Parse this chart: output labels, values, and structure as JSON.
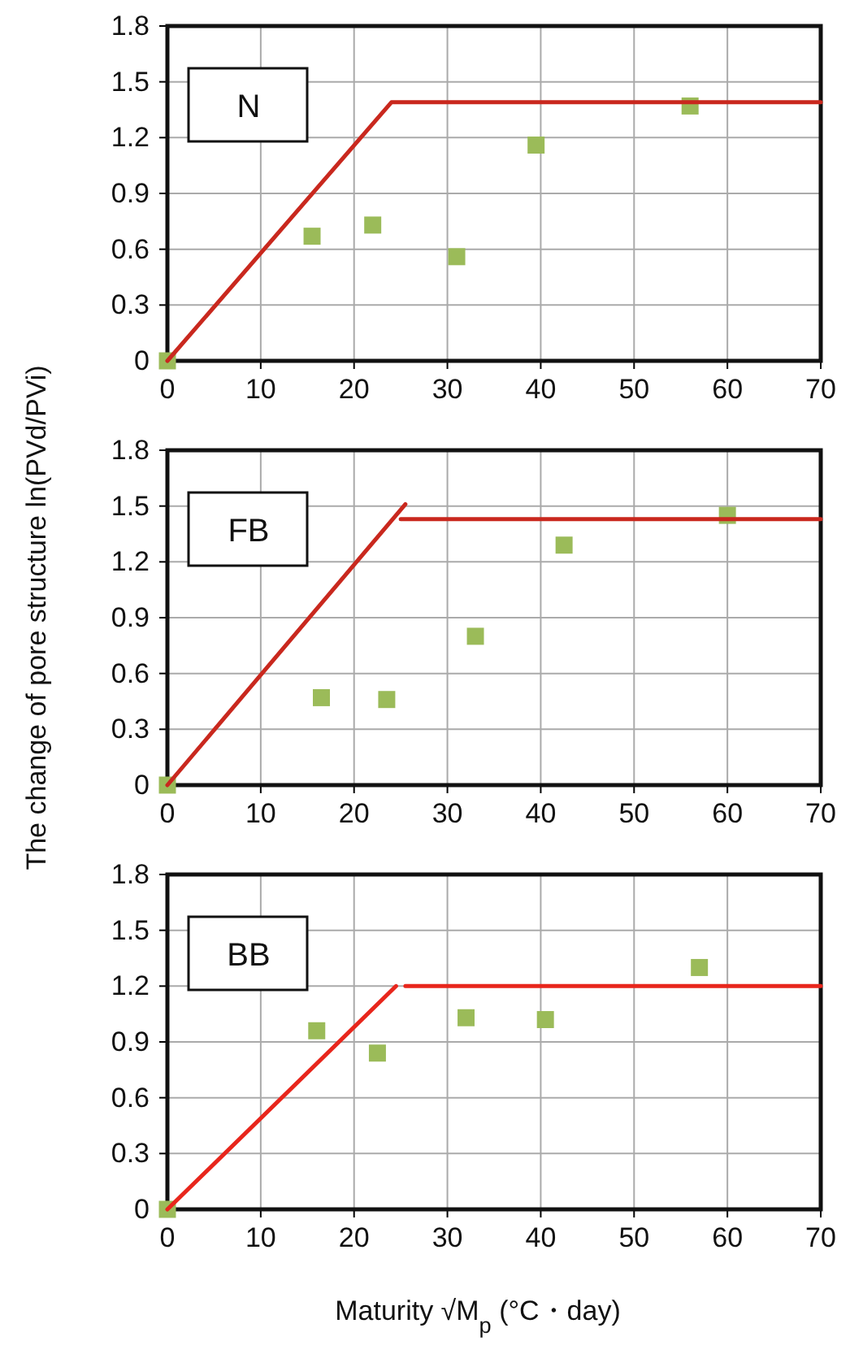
{
  "chart_data": [
    {
      "type": "scatter",
      "annotations": [
        "N"
      ],
      "xlim": [
        0,
        70
      ],
      "xticks": [
        0,
        10,
        20,
        30,
        40,
        50,
        60,
        70
      ],
      "ylim": [
        0,
        1.8
      ],
      "yticks": [
        0,
        0.3,
        0.6,
        0.9,
        1.2,
        1.5,
        1.8
      ],
      "grid": true,
      "series": [
        {
          "type": "scatter",
          "marker": "square",
          "color": "#9bbb59",
          "x": [
            0,
            15.5,
            22,
            31,
            39.5,
            56
          ],
          "values": [
            0,
            0.67,
            0.73,
            0.56,
            1.16,
            1.37
          ]
        },
        {
          "type": "line",
          "marker": "none",
          "color": "#c9281e",
          "x": [
            0,
            24,
            70
          ],
          "values": [
            0,
            1.39,
            1.39
          ]
        }
      ]
    },
    {
      "type": "scatter",
      "annotations": [
        "FB"
      ],
      "ylabel": "The change of pore structure ln(PVd/PVi)",
      "xlim": [
        0,
        70
      ],
      "xticks": [
        0,
        10,
        20,
        30,
        40,
        50,
        60,
        70
      ],
      "ylim": [
        0,
        1.8
      ],
      "yticks": [
        0,
        0.3,
        0.6,
        0.9,
        1.2,
        1.5,
        1.8
      ],
      "grid": true,
      "series": [
        {
          "type": "scatter",
          "marker": "square",
          "color": "#9bbb59",
          "x": [
            0,
            16.5,
            23.5,
            33,
            42.5,
            60
          ],
          "values": [
            0,
            0.47,
            0.46,
            0.8,
            1.29,
            1.45
          ]
        },
        {
          "type": "line",
          "marker": "none",
          "color": "#c9281e",
          "x": [
            0,
            25.5
          ],
          "values": [
            0,
            1.51
          ]
        },
        {
          "type": "line",
          "marker": "none",
          "color": "#c9281e",
          "x": [
            25,
            70
          ],
          "values": [
            1.43,
            1.43
          ]
        }
      ]
    },
    {
      "type": "scatter",
      "annotations": [
        "BB"
      ],
      "xlabel": "Maturity √M$_{p}$ (°C・day)",
      "xlim": [
        0,
        70
      ],
      "xticks": [
        0,
        10,
        20,
        30,
        40,
        50,
        60,
        70
      ],
      "ylim": [
        0,
        1.8
      ],
      "yticks": [
        0,
        0.3,
        0.6,
        0.9,
        1.2,
        1.5,
        1.8
      ],
      "grid": true,
      "series": [
        {
          "type": "scatter",
          "marker": "square",
          "color": "#9bbb59",
          "x": [
            0,
            16,
            22.5,
            32,
            40.5,
            57
          ],
          "values": [
            0,
            0.96,
            0.84,
            1.03,
            1.02,
            1.3
          ]
        },
        {
          "type": "line",
          "marker": "none",
          "color": "#e8261c",
          "x": [
            0,
            24.5
          ],
          "values": [
            0,
            1.2
          ]
        },
        {
          "type": "line",
          "marker": "none",
          "color": "#e8261c",
          "x": [
            25.5,
            70
          ],
          "values": [
            1.2,
            1.2
          ]
        }
      ]
    }
  ]
}
